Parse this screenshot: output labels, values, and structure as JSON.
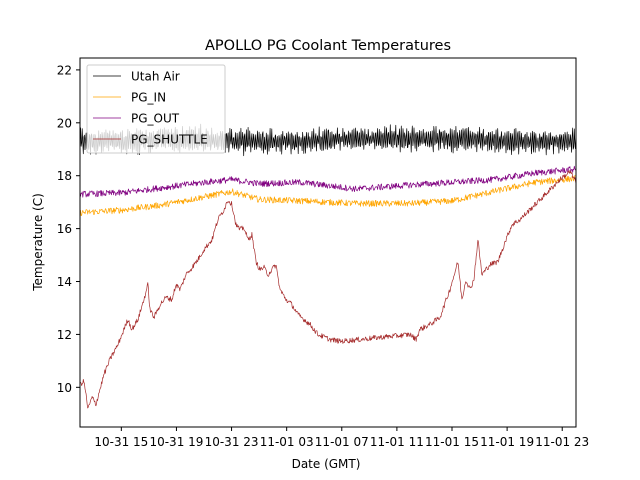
{
  "chart_data": {
    "type": "line",
    "title": "APOLLO PG Coolant Temperatures",
    "xlabel": "Date (GMT)",
    "ylabel": "Temperature (C)",
    "x_unit": "hours since 10-31 12:00 GMT",
    "xlim": [
      0,
      36
    ],
    "ylim": [
      8.5,
      22.45
    ],
    "grid": false,
    "legend_position": "top-left",
    "x_ticks": [
      {
        "value": 3,
        "label": "10-31 15"
      },
      {
        "value": 7,
        "label": "10-31 19"
      },
      {
        "value": 11,
        "label": "10-31 23"
      },
      {
        "value": 15,
        "label": "11-01 03"
      },
      {
        "value": 19,
        "label": "11-01 07"
      },
      {
        "value": 23,
        "label": "11-01 11"
      },
      {
        "value": 27,
        "label": "11-01 15"
      },
      {
        "value": 31,
        "label": "11-01 19"
      },
      {
        "value": 35,
        "label": "11-01 23"
      }
    ],
    "y_ticks": [
      {
        "value": 10,
        "label": "10"
      },
      {
        "value": 12,
        "label": "12"
      },
      {
        "value": 14,
        "label": "14"
      },
      {
        "value": 16,
        "label": "16"
      },
      {
        "value": 18,
        "label": "18"
      },
      {
        "value": 20,
        "label": "20"
      },
      {
        "value": 22,
        "label": "22"
      }
    ],
    "series": [
      {
        "name": "Utah Air",
        "color": "#000000",
        "noise": 0.45,
        "x": [
          0,
          4,
          8,
          12,
          16,
          20,
          24,
          28,
          32,
          36
        ],
        "y": [
          19.3,
          19.3,
          19.4,
          19.3,
          19.3,
          19.4,
          19.4,
          19.4,
          19.3,
          19.3
        ]
      },
      {
        "name": "PG_IN",
        "color": "#ffa500",
        "noise": 0.12,
        "x": [
          0,
          3,
          6,
          9,
          11,
          13,
          16,
          20,
          24,
          27,
          30,
          33,
          36
        ],
        "y": [
          16.6,
          16.7,
          16.9,
          17.2,
          17.4,
          17.1,
          17.05,
          16.95,
          16.95,
          17.05,
          17.4,
          17.75,
          17.9
        ],
        "note": "y-values estimated from pixel positions"
      },
      {
        "name": "PG_OUT",
        "color": "#800080",
        "noise": 0.12,
        "x": [
          0,
          3,
          6,
          9,
          11,
          13,
          16,
          20,
          24,
          27,
          30,
          33,
          36
        ],
        "y": [
          17.3,
          17.35,
          17.55,
          17.75,
          17.85,
          17.7,
          17.75,
          17.5,
          17.65,
          17.75,
          17.85,
          18.1,
          18.25
        ]
      },
      {
        "name": "PG_SHUTTLE",
        "color": "#a52a2a",
        "noise": 0.1,
        "x": [
          0,
          0.29,
          0.58,
          0.87,
          1.16,
          1.74,
          2.18,
          2.76,
          3.19,
          3.48,
          3.77,
          4.21,
          4.64,
          4.93,
          5.08,
          5.37,
          5.81,
          6.24,
          6.68,
          6.97,
          7.26,
          7.69,
          8.13,
          8.56,
          9.0,
          9.58,
          10.01,
          10.45,
          10.74,
          11.03,
          11.32,
          11.61,
          11.9,
          12.19,
          12.48,
          12.77,
          13.06,
          13.35,
          13.64,
          13.93,
          14.22,
          14.51,
          14.95,
          15.38,
          15.82,
          16.25,
          16.69,
          17.27,
          18.14,
          18.87,
          20.32,
          21.77,
          23.22,
          23.95,
          24.38,
          24.67,
          25.4,
          26.12,
          26.85,
          27.43,
          27.72,
          28.01,
          28.3,
          28.59,
          28.88,
          29.17,
          29.75,
          30.33,
          30.91,
          31.35,
          31.93,
          32.66,
          33.38,
          34.11,
          34.83,
          35.56,
          36.0
        ],
        "y": [
          10.11,
          10.23,
          9.17,
          9.62,
          9.36,
          10.49,
          11.06,
          11.62,
          12.19,
          12.57,
          12.19,
          12.57,
          13.32,
          13.89,
          12.94,
          12.64,
          13.13,
          13.4,
          13.32,
          13.89,
          13.7,
          14.26,
          14.53,
          14.83,
          15.21,
          15.58,
          16.34,
          16.72,
          17.09,
          16.91,
          16.15,
          15.96,
          16.04,
          15.58,
          15.77,
          14.75,
          14.45,
          14.53,
          14.26,
          14.45,
          14.64,
          13.7,
          13.32,
          13.13,
          12.75,
          12.57,
          12.38,
          12.0,
          11.81,
          11.74,
          11.81,
          11.89,
          11.96,
          12.0,
          11.81,
          12.19,
          12.38,
          12.64,
          13.7,
          14.75,
          13.32,
          14.08,
          13.7,
          14.08,
          15.58,
          14.26,
          14.64,
          14.75,
          15.58,
          16.15,
          16.34,
          16.72,
          17.09,
          17.47,
          17.85,
          18.15,
          17.77
        ]
      }
    ]
  }
}
